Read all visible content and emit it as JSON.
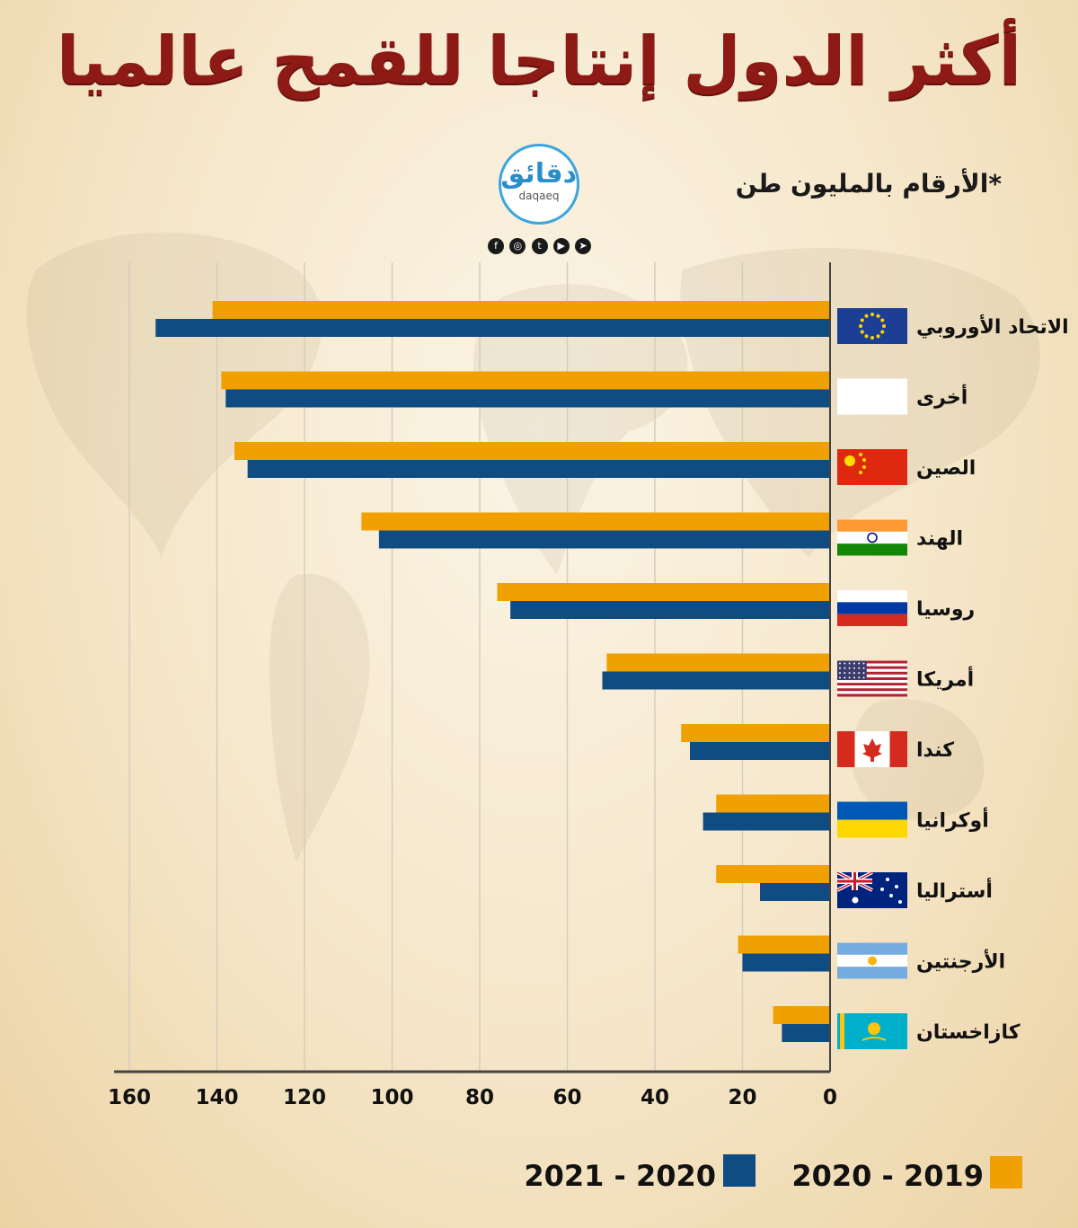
{
  "title": "أكثر الدول إنتاجا للقمح عالميا",
  "unit_note": "*الأرقام بالمليون طن",
  "logo": {
    "arabic": "دقائق",
    "latin": "daqaeq"
  },
  "social_icons": [
    "facebook-icon",
    "instagram-icon",
    "twitter-icon",
    "youtube-icon",
    "telegram-icon"
  ],
  "colors": {
    "series_2019_2020": "#f0a000",
    "series_2020_2021": "#0f4c81",
    "title": "#8e1a16",
    "grid": "#d5cdbe",
    "axis": "#444444"
  },
  "chart_data": {
    "type": "bar",
    "orientation": "horizontal",
    "x_direction": "right-to-left",
    "categories": [
      "الاتحاد الأوروبي",
      "أخرى",
      "الصين",
      "الهند",
      "روسيا",
      "أمريكا",
      "كندا",
      "أوكرانيا",
      "أستراليا",
      "الأرجنتين",
      "كازاخستان"
    ],
    "flags": [
      "eu",
      "other",
      "china",
      "india",
      "russia",
      "usa",
      "canada",
      "ukraine",
      "australia",
      "argentina",
      "kazakhstan"
    ],
    "series": [
      {
        "name": "2020 - 2019",
        "color": "#f0a000",
        "values": [
          141,
          139,
          136,
          107,
          76,
          51,
          34,
          26,
          26,
          21,
          13
        ]
      },
      {
        "name": "2021 - 2020",
        "color": "#0f4c81",
        "values": [
          154,
          138,
          133,
          103,
          73,
          52,
          32,
          29,
          16,
          20,
          11
        ]
      }
    ],
    "xlim": [
      0,
      160
    ],
    "x_ticks": [
      0,
      20,
      40,
      60,
      80,
      100,
      120,
      140,
      160
    ],
    "grid": true,
    "legend_position": "bottom"
  }
}
